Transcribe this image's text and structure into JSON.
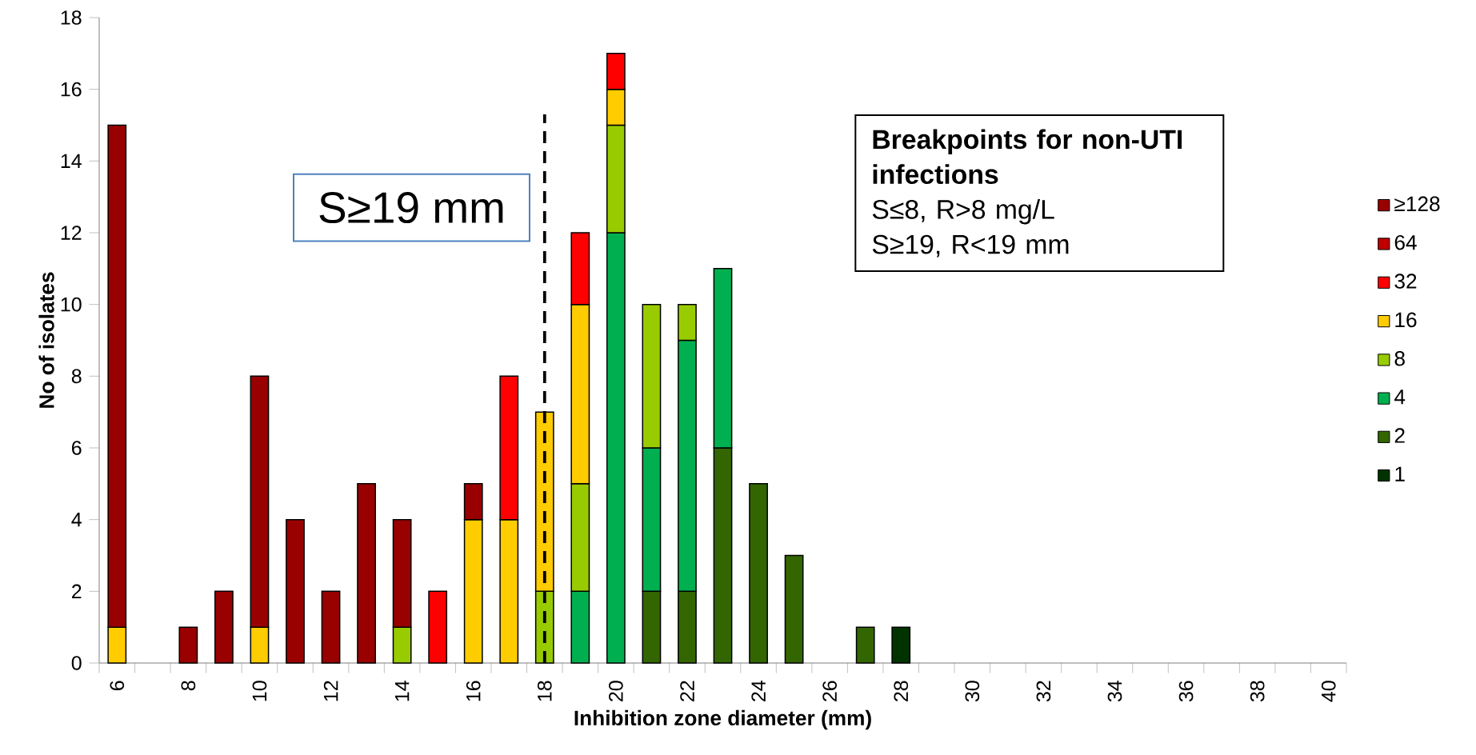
{
  "chart_data": {
    "type": "bar",
    "stacked": true,
    "xlabel": "Inhibition zone diameter (mm)",
    "ylabel": "No of isolates",
    "categories": [
      "6",
      null,
      "8",
      null,
      "10",
      null,
      "12",
      null,
      "14",
      null,
      "16",
      null,
      "18",
      null,
      "20",
      null,
      "22",
      null,
      "24",
      null,
      "26",
      null,
      "28",
      null,
      "30",
      null,
      "32",
      null,
      "34",
      null,
      "36",
      null,
      "38",
      null,
      "40"
    ],
    "series": [
      {
        "name": "1",
        "color": "#003300",
        "values": [
          null,
          null,
          null,
          null,
          null,
          null,
          null,
          null,
          null,
          null,
          null,
          null,
          null,
          null,
          null,
          null,
          null,
          null,
          null,
          null,
          null,
          null,
          1,
          null,
          null,
          null,
          null,
          null,
          null,
          null,
          null,
          null,
          null,
          null,
          null
        ]
      },
      {
        "name": "2",
        "color": "#336600",
        "values": [
          null,
          null,
          null,
          null,
          null,
          null,
          null,
          null,
          null,
          null,
          null,
          null,
          null,
          null,
          null,
          2,
          2,
          6,
          5,
          3,
          null,
          1,
          null,
          null,
          null,
          null,
          null,
          null,
          null,
          null,
          null,
          null,
          null,
          null,
          null
        ]
      },
      {
        "name": "4",
        "color": "#00b050",
        "values": [
          null,
          null,
          null,
          null,
          null,
          null,
          null,
          null,
          null,
          null,
          null,
          null,
          null,
          2,
          12,
          4,
          7,
          5,
          null,
          null,
          null,
          null,
          null,
          null,
          null,
          null,
          null,
          null,
          null,
          null,
          null,
          null,
          null,
          null,
          null
        ]
      },
      {
        "name": "8",
        "color": "#99cc00",
        "values": [
          null,
          null,
          null,
          null,
          null,
          null,
          null,
          null,
          1,
          null,
          null,
          null,
          2,
          3,
          3,
          4,
          1,
          null,
          null,
          null,
          null,
          null,
          null,
          null,
          null,
          null,
          null,
          null,
          null,
          null,
          null,
          null,
          null,
          null,
          null
        ]
      },
      {
        "name": "16",
        "color": "#ffcc00",
        "values": [
          1,
          null,
          null,
          null,
          1,
          null,
          null,
          null,
          null,
          null,
          4,
          4,
          5,
          5,
          1,
          null,
          null,
          null,
          null,
          null,
          null,
          null,
          null,
          null,
          null,
          null,
          null,
          null,
          null,
          null,
          null,
          null,
          null,
          null,
          null
        ]
      },
      {
        "name": "32",
        "color": "#ff0000",
        "values": [
          null,
          null,
          null,
          null,
          null,
          null,
          null,
          null,
          null,
          2,
          null,
          4,
          null,
          2,
          1,
          null,
          null,
          null,
          null,
          null,
          null,
          null,
          null,
          null,
          null,
          null,
          null,
          null,
          null,
          null,
          null,
          null,
          null,
          null,
          null
        ]
      },
      {
        "name": "64",
        "color": "#c00000",
        "values": [
          null,
          null,
          null,
          null,
          null,
          null,
          null,
          null,
          null,
          null,
          null,
          null,
          null,
          null,
          null,
          null,
          null,
          null,
          null,
          null,
          null,
          null,
          null,
          null,
          null,
          null,
          null,
          null,
          null,
          null,
          null,
          null,
          null,
          null,
          null
        ]
      },
      {
        "name": "≥128",
        "color": "#990000",
        "values": [
          14,
          null,
          1,
          2,
          7,
          4,
          2,
          5,
          3,
          null,
          1,
          null,
          null,
          null,
          null,
          null,
          null,
          null,
          null,
          null,
          null,
          null,
          null,
          null,
          null,
          null,
          null,
          null,
          null,
          null,
          null,
          null,
          null,
          null,
          null
        ]
      }
    ],
    "ylim": [
      0,
      18
    ],
    "yticks": [
      0,
      2,
      4,
      6,
      8,
      10,
      12,
      14,
      16,
      18
    ],
    "legend": "right",
    "ref_lines": [
      {
        "axis": "x",
        "value": "18",
        "label": "S≥19 mm",
        "line_style": "dashed"
      }
    ],
    "annotations": [
      "Breakpoints for non-UTI infections",
      "S≤8, R>8 mg/L",
      "S≥19, R<19 mm"
    ]
  }
}
